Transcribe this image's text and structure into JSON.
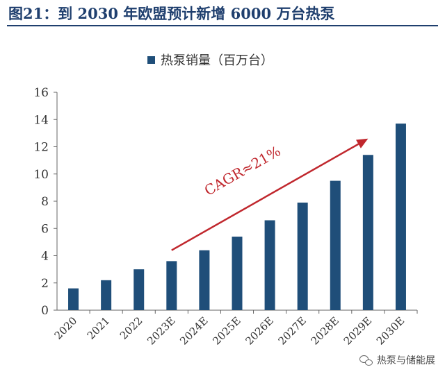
{
  "figure_title": "图21：到 2030 年欧盟预计新增 6000 万台热泵",
  "watermark": "热泵与储能展",
  "chart_data": {
    "type": "bar",
    "categories": [
      "2020",
      "2021",
      "2022",
      "2023E",
      "2024E",
      "2025E",
      "2026E",
      "2027E",
      "2028E",
      "2029E",
      "2030E"
    ],
    "series": [
      {
        "name": "热泵销量（百万台）",
        "values": [
          1.6,
          2.2,
          3.0,
          3.6,
          4.4,
          5.4,
          6.6,
          7.9,
          9.5,
          11.4,
          13.7
        ],
        "color": "#1f4e79"
      }
    ],
    "ylim": [
      0,
      16
    ],
    "yticks": [
      0,
      2,
      4,
      6,
      8,
      10,
      12,
      14,
      16
    ],
    "grid": false,
    "legend_position": "top",
    "annotation": {
      "text": "CAGR≈21%",
      "color": "#c0272d",
      "arrow_from": {
        "category": "2023E",
        "value": 4.4
      },
      "arrow_to": {
        "category": "2029E",
        "value": 12.6
      }
    }
  }
}
